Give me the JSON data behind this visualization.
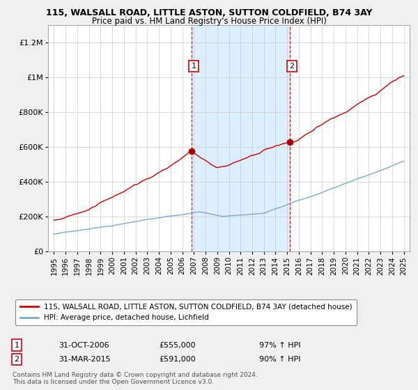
{
  "title": "115, WALSALL ROAD, LITTLE ASTON, SUTTON COLDFIELD, B74 3AY",
  "subtitle": "Price paid vs. HM Land Registry's House Price Index (HPI)",
  "legend_line1": "115, WALSALL ROAD, LITTLE ASTON, SUTTON COLDFIELD, B74 3AY (detached house)",
  "legend_line2": "HPI: Average price, detached house, Lichfield",
  "annotation1_label": "1",
  "annotation1_date": "31-OCT-2006",
  "annotation1_price": "£555,000",
  "annotation1_hpi": "97% ↑ HPI",
  "annotation2_label": "2",
  "annotation2_date": "31-MAR-2015",
  "annotation2_price": "£591,000",
  "annotation2_hpi": "90% ↑ HPI",
  "copyright": "Contains HM Land Registry data © Crown copyright and database right 2024.\nThis data is licensed under the Open Government Licence v3.0.",
  "sale1_x": 2006.83,
  "sale1_y": 555000,
  "sale2_x": 2015.25,
  "sale2_y": 591000,
  "ylim": [
    0,
    1300000
  ],
  "xlim_start": 1994.5,
  "xlim_end": 2025.5,
  "property_color": "#cc0000",
  "hpi_color": "#7aaad0",
  "shade_color": "#ddeeff",
  "vline_color": "#cc0000",
  "background_color": "#f0f0f0",
  "plot_bg_color": "#ffffff"
}
